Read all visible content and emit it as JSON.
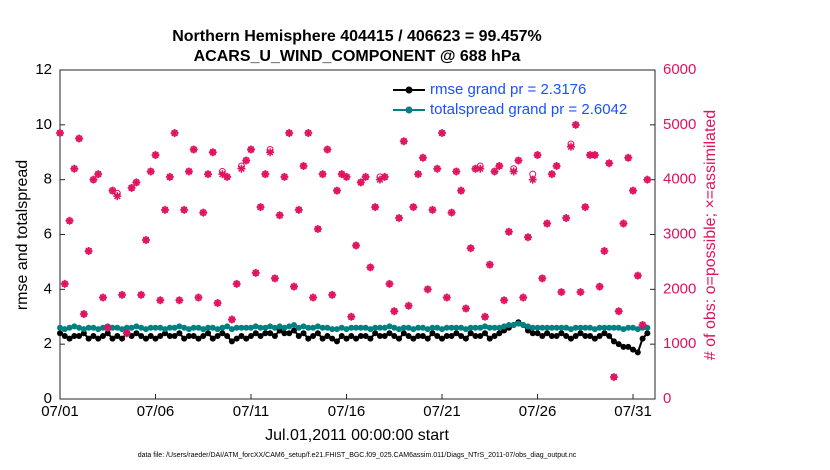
{
  "chart_data": {
    "type": "line",
    "title": "Northern Hemisphere 404415 / 406623 = 99.457%",
    "subtitle": "ACARS_U_WIND_COMPONENT @ 688 hPa",
    "xlabel": "Jul.01,2011 00:00:00 start",
    "ylabel": "rmse and totalspread",
    "y2label": "# of obs: o=possible; ×=assimilated",
    "footnote": "data file: /Users/raeder/DAI/ATM_forcXX/CAM6_setup/f.e21.FHIST_BGC.f09_025.CAM6assim.011/Diags_NTrS_2011-07/obs_diag_output.nc",
    "xlim": [
      0,
      31.15
    ],
    "xticks": [
      {
        "value": 0,
        "label": "07/01"
      },
      {
        "value": 5,
        "label": "07/06"
      },
      {
        "value": 10,
        "label": "07/11"
      },
      {
        "value": 15,
        "label": "07/16"
      },
      {
        "value": 20,
        "label": "07/21"
      },
      {
        "value": 25,
        "label": "07/26"
      },
      {
        "value": 30,
        "label": "07/31"
      }
    ],
    "ylim": [
      0,
      12
    ],
    "yticks": [
      0,
      2,
      4,
      6,
      8,
      10,
      12
    ],
    "y2lim": [
      0,
      6000
    ],
    "y2ticks": [
      0,
      1000,
      2000,
      3000,
      4000,
      5000,
      6000
    ],
    "legend": "upper right",
    "x": [
      0,
      0.25,
      0.5,
      0.75,
      1,
      1.25,
      1.5,
      1.75,
      2,
      2.25,
      2.5,
      2.75,
      3,
      3.25,
      3.5,
      3.75,
      4,
      4.25,
      4.5,
      4.75,
      5,
      5.25,
      5.5,
      5.75,
      6,
      6.25,
      6.5,
      6.75,
      7,
      7.25,
      7.5,
      7.75,
      8,
      8.25,
      8.5,
      8.75,
      9,
      9.25,
      9.5,
      9.75,
      10,
      10.25,
      10.5,
      10.75,
      11,
      11.25,
      11.5,
      11.75,
      12,
      12.25,
      12.5,
      12.75,
      13,
      13.25,
      13.5,
      13.75,
      14,
      14.25,
      14.5,
      14.75,
      15,
      15.25,
      15.5,
      15.75,
      16,
      16.25,
      16.5,
      16.75,
      17,
      17.25,
      17.5,
      17.75,
      18,
      18.25,
      18.5,
      18.75,
      19,
      19.25,
      19.5,
      19.75,
      20,
      20.25,
      20.5,
      20.75,
      21,
      21.25,
      21.5,
      21.75,
      22,
      22.25,
      22.5,
      22.75,
      23,
      23.25,
      23.5,
      23.75,
      24,
      24.25,
      24.5,
      24.75,
      25,
      25.25,
      25.5,
      25.75,
      26,
      26.25,
      26.5,
      26.75,
      27,
      27.25,
      27.5,
      27.75,
      28,
      28.25,
      28.5,
      28.75,
      29,
      29.25,
      29.5,
      29.75,
      30,
      30.25,
      30.5,
      30.75
    ],
    "series": [
      {
        "name": "rmse grand pr = 2.3176",
        "color": "#000000",
        "marker": "dot",
        "values": [
          2.4,
          2.3,
          2.2,
          2.3,
          2.3,
          2.4,
          2.2,
          2.3,
          2.2,
          2.3,
          2.4,
          2.2,
          2.3,
          2.2,
          2.4,
          2.3,
          2.4,
          2.3,
          2.2,
          2.3,
          2.2,
          2.3,
          2.4,
          2.3,
          2.3,
          2.4,
          2.2,
          2.3,
          2.3,
          2.2,
          2.3,
          2.4,
          2.2,
          2.3,
          2.4,
          2.3,
          2.1,
          2.2,
          2.3,
          2.2,
          2.3,
          2.4,
          2.3,
          2.4,
          2.4,
          2.3,
          2.5,
          2.4,
          2.4,
          2.5,
          2.3,
          2.4,
          2.2,
          2.3,
          2.4,
          2.2,
          2.3,
          2.2,
          2.1,
          2.3,
          2.2,
          2.3,
          2.2,
          2.3,
          2.3,
          2.2,
          2.4,
          2.3,
          2.3,
          2.4,
          2.3,
          2.2,
          2.4,
          2.3,
          2.2,
          2.3,
          2.3,
          2.2,
          2.4,
          2.3,
          2.2,
          2.3,
          2.3,
          2.4,
          2.3,
          2.2,
          2.4,
          2.3,
          2.3,
          2.4,
          2.2,
          2.3,
          2.4,
          2.5,
          2.6,
          2.7,
          2.8,
          2.7,
          2.5,
          2.4,
          2.4,
          2.3,
          2.4,
          2.3,
          2.3,
          2.4,
          2.3,
          2.2,
          2.3,
          2.4,
          2.3,
          2.3,
          2.2,
          2.3,
          2.4,
          2.3,
          2.1,
          2.0,
          1.9,
          1.9,
          1.8,
          1.7,
          2.2,
          2.4
        ]
      },
      {
        "name": "totalspread grand pr = 2.6042",
        "color": "#008080",
        "marker": "dot",
        "values": [
          2.6,
          2.55,
          2.6,
          2.65,
          2.6,
          2.55,
          2.6,
          2.6,
          2.55,
          2.6,
          2.65,
          2.6,
          2.6,
          2.55,
          2.6,
          2.6,
          2.65,
          2.6,
          2.55,
          2.6,
          2.6,
          2.6,
          2.55,
          2.6,
          2.6,
          2.65,
          2.6,
          2.55,
          2.6,
          2.6,
          2.55,
          2.6,
          2.6,
          2.55,
          2.6,
          2.65,
          2.55,
          2.6,
          2.6,
          2.6,
          2.6,
          2.65,
          2.6,
          2.6,
          2.65,
          2.6,
          2.65,
          2.6,
          2.65,
          2.7,
          2.6,
          2.65,
          2.6,
          2.6,
          2.65,
          2.6,
          2.6,
          2.55,
          2.55,
          2.6,
          2.55,
          2.6,
          2.6,
          2.6,
          2.6,
          2.55,
          2.6,
          2.6,
          2.6,
          2.65,
          2.6,
          2.55,
          2.6,
          2.6,
          2.55,
          2.6,
          2.6,
          2.55,
          2.6,
          2.6,
          2.55,
          2.6,
          2.6,
          2.6,
          2.6,
          2.55,
          2.6,
          2.6,
          2.6,
          2.65,
          2.6,
          2.6,
          2.6,
          2.65,
          2.7,
          2.7,
          2.75,
          2.7,
          2.65,
          2.6,
          2.6,
          2.6,
          2.6,
          2.6,
          2.6,
          2.6,
          2.6,
          2.55,
          2.6,
          2.6,
          2.6,
          2.6,
          2.55,
          2.6,
          2.6,
          2.6,
          2.6,
          2.6,
          2.55,
          2.6,
          2.6,
          2.55,
          2.6,
          2.6
        ]
      },
      {
        "name": "possible",
        "color": "#e0115f",
        "marker": "o",
        "axis": "y2",
        "values": [
          4850,
          2100,
          3250,
          4200,
          4750,
          1550,
          2700,
          4000,
          4100,
          1850,
          1300,
          3800,
          3750,
          1900,
          1200,
          3850,
          3950,
          1900,
          2900,
          4150,
          4450,
          1800,
          3450,
          4050,
          4850,
          1800,
          3450,
          4150,
          4550,
          1850,
          3400,
          4100,
          4500,
          1750,
          4150,
          4050,
          1450,
          2100,
          4250,
          4350,
          4550,
          2300,
          3500,
          4100,
          4550,
          2200,
          3350,
          4050,
          4850,
          2050,
          3450,
          4250,
          4850,
          1850,
          3100,
          4100,
          4550,
          1900,
          3800,
          4100,
          4050,
          1500,
          2800,
          3950,
          4050,
          2400,
          3500,
          4050,
          4050,
          2100,
          1600,
          3300,
          4700,
          1700,
          3500,
          4100,
          4400,
          2000,
          3450,
          4200,
          4850,
          1850,
          3400,
          4150,
          3800,
          1650,
          2750,
          4200,
          4250,
          1500,
          2450,
          4150,
          4250,
          1800,
          3050,
          4200,
          4350,
          1850,
          2950,
          4100,
          4450,
          2200,
          3200,
          4100,
          4250,
          1950,
          3300,
          4650,
          5000,
          1950,
          3500,
          4450,
          4450,
          2050,
          2700,
          4300,
          400,
          1600,
          3200,
          4400,
          3800,
          2250,
          1350,
          4000
        ]
      },
      {
        "name": "assimilated",
        "color": "#e0115f",
        "marker": "*",
        "axis": "y2",
        "values": [
          4850,
          2100,
          3250,
          4200,
          4750,
          1550,
          2700,
          4000,
          4100,
          1850,
          1300,
          3800,
          3700,
          1900,
          1200,
          3850,
          3950,
          1900,
          2900,
          4150,
          4450,
          1800,
          3450,
          4050,
          4850,
          1800,
          3450,
          4150,
          4550,
          1850,
          3400,
          4100,
          4500,
          1750,
          4100,
          4050,
          1450,
          2100,
          4200,
          4350,
          4550,
          2300,
          3500,
          4100,
          4500,
          2200,
          3350,
          4050,
          4850,
          2050,
          3450,
          4250,
          4850,
          1850,
          3100,
          4100,
          4550,
          1900,
          3800,
          4100,
          4050,
          1500,
          2800,
          3950,
          4050,
          2400,
          3500,
          4000,
          4050,
          2100,
          1600,
          3300,
          4700,
          1700,
          3500,
          4100,
          4400,
          2000,
          3450,
          4200,
          4850,
          1850,
          3400,
          4150,
          3800,
          1650,
          2750,
          4200,
          4200,
          1500,
          2450,
          4150,
          4250,
          1800,
          3050,
          4150,
          4350,
          1850,
          2950,
          4000,
          4450,
          2200,
          3200,
          4100,
          4250,
          1950,
          3300,
          4600,
          5000,
          1950,
          3500,
          4450,
          4450,
          2050,
          2700,
          4300,
          400,
          1600,
          3200,
          4400,
          3800,
          2250,
          1350,
          4000
        ]
      }
    ]
  }
}
